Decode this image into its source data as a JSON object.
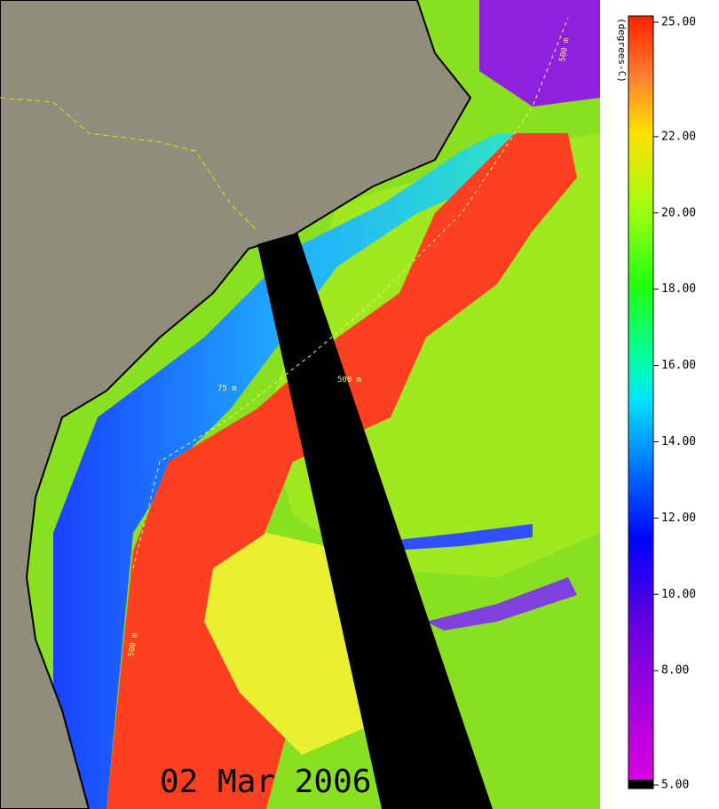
{
  "map": {
    "date": "02 Mar 2006",
    "contour_labels": [
      "75 m",
      "500 m",
      "500 m",
      "500 m"
    ],
    "colorbar": {
      "title": "(degrees-C)",
      "lim": [
        5,
        25
      ],
      "ticks": [
        {
          "value": 25,
          "label": "25.00"
        },
        {
          "value": 22,
          "label": "22.00"
        },
        {
          "value": 20,
          "label": "20.00"
        },
        {
          "value": 18,
          "label": "18.00"
        },
        {
          "value": 16,
          "label": "16.00"
        },
        {
          "value": 14,
          "label": "14.00"
        },
        {
          "value": 12,
          "label": "12.00"
        },
        {
          "value": 10,
          "label": "10.00"
        },
        {
          "value": 8,
          "label": "8.00"
        },
        {
          "value": 5,
          "label": "5.00"
        }
      ]
    }
  }
}
